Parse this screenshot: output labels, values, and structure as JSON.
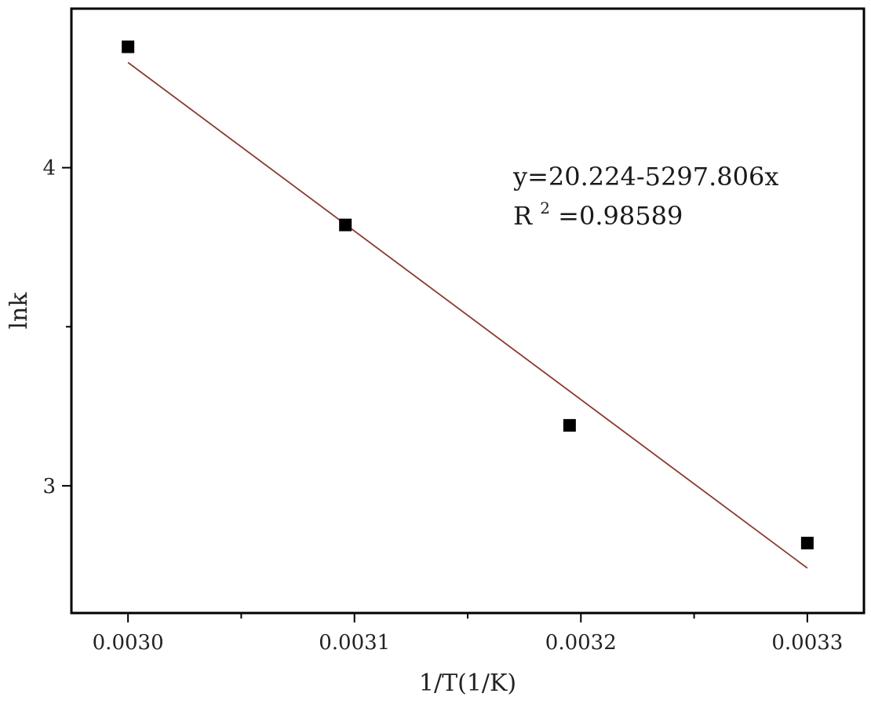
{
  "chart_data": {
    "type": "scatter",
    "title": "",
    "xlabel": "1/T(1/K)",
    "ylabel": "lnk",
    "xlim": [
      0.002975,
      0.003325
    ],
    "ylim": [
      2.6,
      4.5
    ],
    "x_ticks": [
      0.003,
      0.0031,
      0.0032,
      0.0033
    ],
    "x_tick_labels": [
      "0.0030",
      "0.0031",
      "0.0032",
      "0.0033"
    ],
    "x_minor_ticks": [
      0.00305,
      0.00315,
      0.00325
    ],
    "y_ticks": [
      3,
      4
    ],
    "y_tick_labels": [
      "3",
      "4"
    ],
    "y_minor_ticks": [
      3.5
    ],
    "grid": false,
    "series": [
      {
        "marker": "square",
        "color": "#000000",
        "points": [
          {
            "x": 0.003,
            "y": 4.38
          },
          {
            "x": 0.003096,
            "y": 3.82
          },
          {
            "x": 0.003195,
            "y": 3.19
          },
          {
            "x": 0.0033,
            "y": 2.82
          }
        ]
      }
    ],
    "fit_line": {
      "intercept": 20.224,
      "slope": -5297.806,
      "x_range": [
        0.003,
        0.0033
      ],
      "color": "#8b3a2f"
    },
    "annotations": {
      "equation": "y=20.224-5297.806x",
      "r2_prefix": "R",
      "r2_sup": "2",
      "r2_value": "=0.98589"
    }
  }
}
